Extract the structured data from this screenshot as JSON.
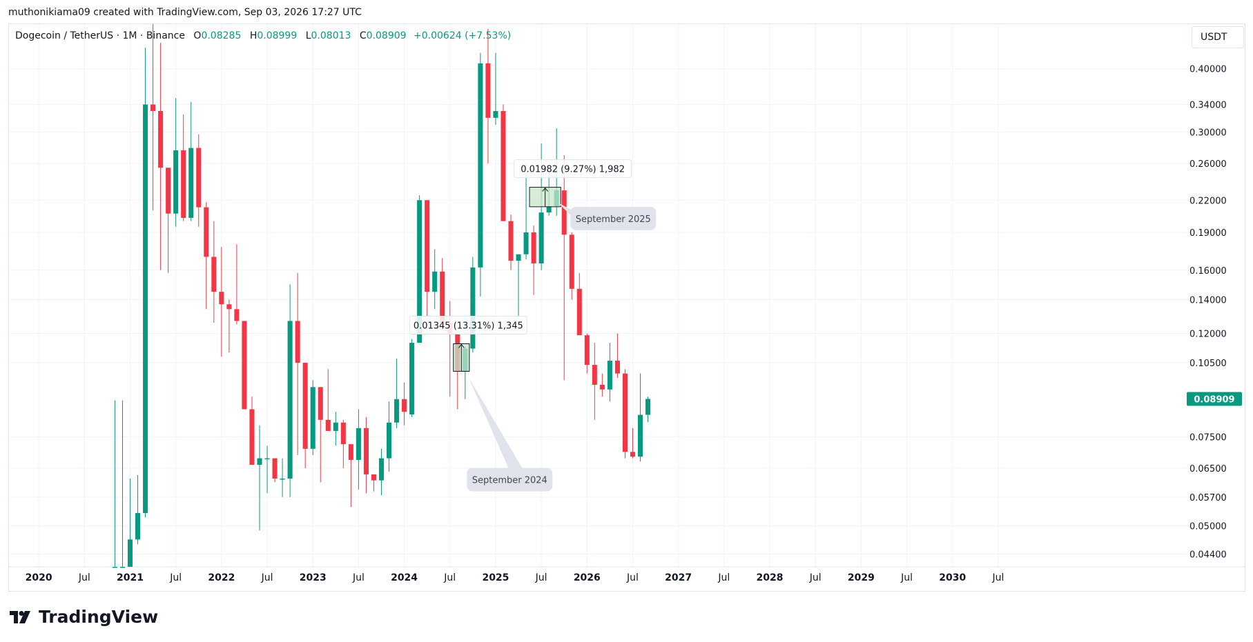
{
  "caption": "muthonikiama09 created with TradingView.com, Sep 03, 2026 17:27 UTC",
  "legend": {
    "symbol": "Dogecoin / TetherUS · 1M · Binance",
    "open_label": "O",
    "open": "0.08285",
    "high_label": "H",
    "high": "0.08999",
    "low_label": "L",
    "low": "0.08013",
    "close_label": "C",
    "close": "0.08909",
    "change": "+0.00624 (+7.53%)"
  },
  "unit_button": "USDT",
  "logo_text": "TradingView",
  "colors": {
    "up": "#089981",
    "down": "#f23645",
    "grid": "#f0f3fa",
    "text": "#131722",
    "callout": "#e0e3eb",
    "range_fill": "#c8e6c9"
  },
  "chart_data": {
    "type": "candlestick",
    "interval": "1M",
    "y_scale": "log",
    "ylim": [
      0.0415,
      0.49
    ],
    "x_range": [
      "2019-09",
      "2030-09"
    ],
    "grid": true,
    "y_ticks": [
      "0.40000",
      "0.34000",
      "0.30000",
      "0.26000",
      "0.22000",
      "0.19000",
      "0.16000",
      "0.14000",
      "0.12000",
      "0.10500",
      "0.07500",
      "0.06500",
      "0.05700",
      "0.05000",
      "0.04400"
    ],
    "x_ticks": [
      {
        "label": "2020",
        "date": "2020-01",
        "major": true
      },
      {
        "label": "Jul",
        "date": "2020-07",
        "major": false
      },
      {
        "label": "2021",
        "date": "2021-01",
        "major": true
      },
      {
        "label": "Jul",
        "date": "2021-07",
        "major": false
      },
      {
        "label": "2022",
        "date": "2022-01",
        "major": true
      },
      {
        "label": "Jul",
        "date": "2022-07",
        "major": false
      },
      {
        "label": "2023",
        "date": "2023-01",
        "major": true
      },
      {
        "label": "Jul",
        "date": "2023-07",
        "major": false
      },
      {
        "label": "2024",
        "date": "2024-01",
        "major": true
      },
      {
        "label": "Jul",
        "date": "2024-07",
        "major": false
      },
      {
        "label": "2025",
        "date": "2025-01",
        "major": true
      },
      {
        "label": "Jul",
        "date": "2025-07",
        "major": false
      },
      {
        "label": "2026",
        "date": "2026-01",
        "major": true
      },
      {
        "label": "Jul",
        "date": "2026-07",
        "major": false
      },
      {
        "label": "2027",
        "date": "2027-01",
        "major": true
      },
      {
        "label": "Jul",
        "date": "2027-07",
        "major": false
      },
      {
        "label": "2028",
        "date": "2028-01",
        "major": true
      },
      {
        "label": "Jul",
        "date": "2028-07",
        "major": false
      },
      {
        "label": "2029",
        "date": "2029-01",
        "major": true
      },
      {
        "label": "Jul",
        "date": "2029-07",
        "major": false
      },
      {
        "label": "2030",
        "date": "2030-01",
        "major": true
      },
      {
        "label": "Jul",
        "date": "2030-07",
        "major": false
      }
    ],
    "last_price": "0.08909",
    "candles": [
      {
        "t": "2020-11",
        "o": 0.0415,
        "h": 0.0885,
        "l": 0.0415,
        "c": 0.0415
      },
      {
        "t": "2020-12",
        "o": 0.0415,
        "h": 0.0885,
        "l": 0.0415,
        "c": 0.0415
      },
      {
        "t": "2021-01",
        "o": 0.0415,
        "h": 0.062,
        "l": 0.0415,
        "c": 0.047
      },
      {
        "t": "2021-02",
        "o": 0.047,
        "h": 0.063,
        "l": 0.046,
        "c": 0.053
      },
      {
        "t": "2021-03",
        "o": 0.053,
        "h": 0.44,
        "l": 0.052,
        "c": 0.34
      },
      {
        "t": "2021-04",
        "o": 0.34,
        "h": 0.58,
        "l": 0.21,
        "c": 0.33
      },
      {
        "t": "2021-05",
        "o": 0.33,
        "h": 0.45,
        "l": 0.16,
        "c": 0.255
      },
      {
        "t": "2021-06",
        "o": 0.255,
        "h": 0.255,
        "l": 0.158,
        "c": 0.207
      },
      {
        "t": "2021-07",
        "o": 0.207,
        "h": 0.35,
        "l": 0.195,
        "c": 0.276
      },
      {
        "t": "2021-08",
        "o": 0.276,
        "h": 0.325,
        "l": 0.2,
        "c": 0.203
      },
      {
        "t": "2021-09",
        "o": 0.203,
        "h": 0.344,
        "l": 0.2,
        "c": 0.279
      },
      {
        "t": "2021-10",
        "o": 0.279,
        "h": 0.297,
        "l": 0.195,
        "c": 0.213
      },
      {
        "t": "2021-11",
        "o": 0.213,
        "h": 0.218,
        "l": 0.134,
        "c": 0.17
      },
      {
        "t": "2021-12",
        "o": 0.17,
        "h": 0.2,
        "l": 0.126,
        "c": 0.145
      },
      {
        "t": "2022-01",
        "o": 0.145,
        "h": 0.178,
        "l": 0.108,
        "c": 0.137
      },
      {
        "t": "2022-02",
        "o": 0.137,
        "h": 0.14,
        "l": 0.11,
        "c": 0.134
      },
      {
        "t": "2022-03",
        "o": 0.134,
        "h": 0.18,
        "l": 0.125,
        "c": 0.127
      },
      {
        "t": "2022-04",
        "o": 0.127,
        "h": 0.127,
        "l": 0.085,
        "c": 0.085
      },
      {
        "t": "2022-05",
        "o": 0.085,
        "h": 0.09,
        "l": 0.07,
        "c": 0.066
      },
      {
        "t": "2022-06",
        "o": 0.066,
        "h": 0.079,
        "l": 0.049,
        "c": 0.068
      },
      {
        "t": "2022-07",
        "o": 0.068,
        "h": 0.072,
        "l": 0.058,
        "c": 0.068
      },
      {
        "t": "2022-08",
        "o": 0.068,
        "h": 0.068,
        "l": 0.061,
        "c": 0.062
      },
      {
        "t": "2022-09",
        "o": 0.062,
        "h": 0.068,
        "l": 0.057,
        "c": 0.062
      },
      {
        "t": "2022-10",
        "o": 0.062,
        "h": 0.15,
        "l": 0.057,
        "c": 0.127
      },
      {
        "t": "2022-11",
        "o": 0.127,
        "h": 0.158,
        "l": 0.069,
        "c": 0.105
      },
      {
        "t": "2022-12",
        "o": 0.105,
        "h": 0.105,
        "l": 0.065,
        "c": 0.071
      },
      {
        "t": "2023-01",
        "o": 0.071,
        "h": 0.097,
        "l": 0.069,
        "c": 0.094
      },
      {
        "t": "2023-02",
        "o": 0.094,
        "h": 0.094,
        "l": 0.061,
        "c": 0.081
      },
      {
        "t": "2023-03",
        "o": 0.081,
        "h": 0.102,
        "l": 0.077,
        "c": 0.077
      },
      {
        "t": "2023-04",
        "o": 0.077,
        "h": 0.084,
        "l": 0.072,
        "c": 0.08
      },
      {
        "t": "2023-05",
        "o": 0.08,
        "h": 0.081,
        "l": 0.065,
        "c": 0.0725
      },
      {
        "t": "2023-06",
        "o": 0.0725,
        "h": 0.0725,
        "l": 0.0545,
        "c": 0.0675
      },
      {
        "t": "2023-07",
        "o": 0.0675,
        "h": 0.085,
        "l": 0.059,
        "c": 0.078
      },
      {
        "t": "2023-08",
        "o": 0.078,
        "h": 0.082,
        "l": 0.058,
        "c": 0.0632
      },
      {
        "t": "2023-09",
        "o": 0.0632,
        "h": 0.0632,
        "l": 0.0585,
        "c": 0.0615
      },
      {
        "t": "2023-10",
        "o": 0.0615,
        "h": 0.071,
        "l": 0.0575,
        "c": 0.068
      },
      {
        "t": "2023-11",
        "o": 0.068,
        "h": 0.088,
        "l": 0.064,
        "c": 0.08
      },
      {
        "t": "2023-12",
        "o": 0.08,
        "h": 0.107,
        "l": 0.078,
        "c": 0.089
      },
      {
        "t": "2024-01",
        "o": 0.089,
        "h": 0.096,
        "l": 0.079,
        "c": 0.084
      },
      {
        "t": "2024-02",
        "o": 0.083,
        "h": 0.117,
        "l": 0.082,
        "c": 0.115
      },
      {
        "t": "2024-03",
        "o": 0.115,
        "h": 0.225,
        "l": 0.115,
        "c": 0.22
      },
      {
        "t": "2024-04",
        "o": 0.22,
        "h": 0.22,
        "l": 0.13,
        "c": 0.145
      },
      {
        "t": "2024-05",
        "o": 0.145,
        "h": 0.176,
        "l": 0.134,
        "c": 0.159
      },
      {
        "t": "2024-06",
        "o": 0.159,
        "h": 0.169,
        "l": 0.122,
        "c": 0.126
      },
      {
        "t": "2024-07",
        "o": 0.126,
        "h": 0.139,
        "l": 0.09,
        "c": 0.12
      },
      {
        "t": "2024-08",
        "o": 0.12,
        "h": 0.12,
        "l": 0.085,
        "c": 0.101
      },
      {
        "t": "2024-09",
        "o": 0.101,
        "h": 0.113,
        "l": 0.089,
        "c": 0.112
      },
      {
        "t": "2024-10",
        "o": 0.112,
        "h": 0.17,
        "l": 0.11,
        "c": 0.162
      },
      {
        "t": "2024-11",
        "o": 0.162,
        "h": 0.43,
        "l": 0.142,
        "c": 0.41
      },
      {
        "t": "2024-12",
        "o": 0.41,
        "h": 0.48,
        "l": 0.26,
        "c": 0.32
      },
      {
        "t": "2025-01",
        "o": 0.32,
        "h": 0.43,
        "l": 0.31,
        "c": 0.33
      },
      {
        "t": "2025-02",
        "o": 0.33,
        "h": 0.34,
        "l": 0.2,
        "c": 0.2
      },
      {
        "t": "2025-03",
        "o": 0.2,
        "h": 0.206,
        "l": 0.16,
        "c": 0.167
      },
      {
        "t": "2025-04",
        "o": 0.167,
        "h": 0.172,
        "l": 0.13,
        "c": 0.172
      },
      {
        "t": "2025-05",
        "o": 0.172,
        "h": 0.26,
        "l": 0.168,
        "c": 0.19
      },
      {
        "t": "2025-06",
        "o": 0.19,
        "h": 0.196,
        "l": 0.143,
        "c": 0.165
      },
      {
        "t": "2025-07",
        "o": 0.165,
        "h": 0.285,
        "l": 0.16,
        "c": 0.208
      },
      {
        "t": "2025-08",
        "o": 0.208,
        "h": 0.25,
        "l": 0.205,
        "c": 0.214
      },
      {
        "t": "2025-09",
        "o": 0.214,
        "h": 0.305,
        "l": 0.205,
        "c": 0.23
      },
      {
        "t": "2025-10",
        "o": 0.23,
        "h": 0.27,
        "l": 0.097,
        "c": 0.188
      },
      {
        "t": "2025-11",
        "o": 0.188,
        "h": 0.19,
        "l": 0.14,
        "c": 0.147
      },
      {
        "t": "2025-12",
        "o": 0.147,
        "h": 0.158,
        "l": 0.12,
        "c": 0.119
      },
      {
        "t": "2026-01",
        "o": 0.119,
        "h": 0.12,
        "l": 0.1,
        "c": 0.104
      },
      {
        "t": "2026-02",
        "o": 0.104,
        "h": 0.115,
        "l": 0.081,
        "c": 0.095
      },
      {
        "t": "2026-03",
        "o": 0.095,
        "h": 0.1,
        "l": 0.09,
        "c": 0.093
      },
      {
        "t": "2026-04",
        "o": 0.093,
        "h": 0.115,
        "l": 0.088,
        "c": 0.106
      },
      {
        "t": "2026-05",
        "o": 0.106,
        "h": 0.12,
        "l": 0.098,
        "c": 0.1
      },
      {
        "t": "2026-06",
        "o": 0.1,
        "h": 0.102,
        "l": 0.068,
        "c": 0.07
      },
      {
        "t": "2026-07",
        "o": 0.07,
        "h": 0.078,
        "l": 0.068,
        "c": 0.0685
      },
      {
        "t": "2026-08",
        "o": 0.0685,
        "h": 0.1,
        "l": 0.067,
        "c": 0.08285
      },
      {
        "t": "2026-09",
        "o": 0.08285,
        "h": 0.08999,
        "l": 0.08013,
        "c": 0.08909
      }
    ],
    "annotations": [
      {
        "kind": "range",
        "from": "2024-08",
        "to": "2024-09",
        "low": 0.101,
        "high": 0.1145,
        "label": "0.01345 (13.31%) 1,345",
        "callout": "September 2024"
      },
      {
        "kind": "range",
        "from": "2025-06",
        "to": "2025-09",
        "low": 0.2135,
        "high": 0.2333,
        "label": "0.01982 (9.27%) 1,982",
        "callout": "September 2025"
      }
    ]
  }
}
